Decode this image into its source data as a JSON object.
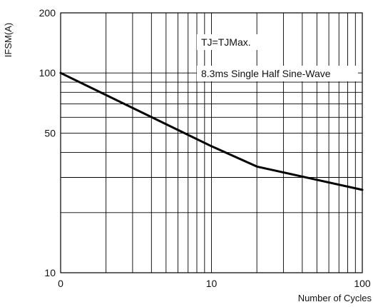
{
  "chart_data": {
    "type": "line",
    "title": "",
    "xlabel": "Number of Cycles",
    "ylabel": "IFSM(A)",
    "x_scale": "log",
    "y_scale": "log",
    "xlim": [
      1,
      100
    ],
    "ylim": [
      10,
      200
    ],
    "x_ticks": [
      {
        "value": 1,
        "label": "0"
      },
      {
        "value": 10,
        "label": "10"
      },
      {
        "value": 100,
        "label": "100"
      }
    ],
    "y_ticks": [
      {
        "value": 10,
        "label": "10"
      },
      {
        "value": 50,
        "label": "50"
      },
      {
        "value": 100,
        "label": "100"
      },
      {
        "value": 200,
        "label": "200"
      }
    ],
    "grid": true,
    "annotations": [
      "TJ=TJMax.",
      "8.3ms Single Half Sine-Wave"
    ],
    "series": [
      {
        "x": [
          1,
          10,
          20,
          100
        ],
        "y": [
          100,
          43,
          34,
          26
        ]
      }
    ]
  }
}
